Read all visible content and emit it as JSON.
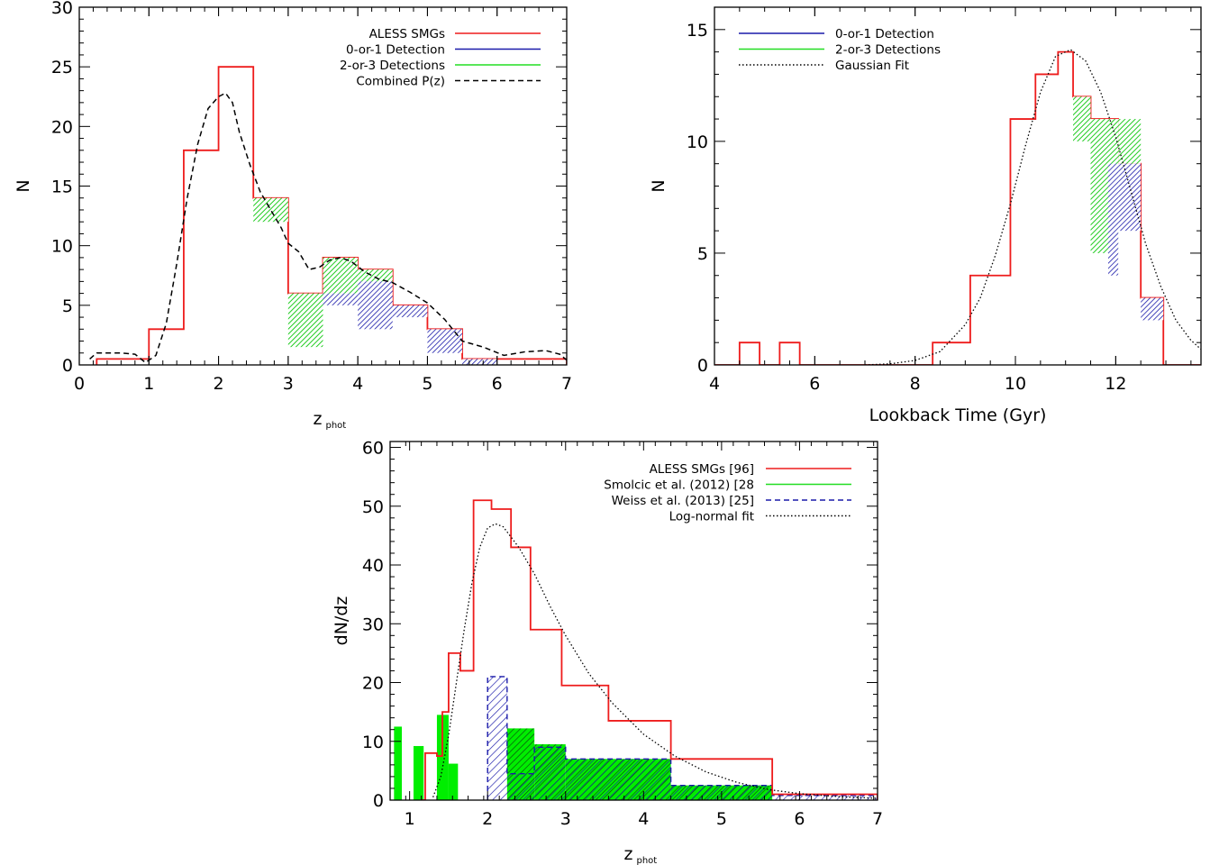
{
  "chart_data": [
    {
      "id": "p1",
      "type": "histogram",
      "xlabel": "z",
      "xlabel_sub": "phot",
      "ylabel": "N",
      "xlim": [
        0,
        7
      ],
      "ylim": [
        0,
        30
      ],
      "xticks": [
        0,
        1,
        2,
        3,
        4,
        5,
        6,
        7
      ],
      "yticks": [
        0,
        5,
        10,
        15,
        20,
        25,
        30
      ],
      "xminor": 0.2,
      "yminor": 1,
      "legend": [
        {
          "label": "ALESS SMGs",
          "color": "#ee1c1c",
          "dash": ""
        },
        {
          "label": "0-or-1 Detection",
          "color": "#1a1aaa",
          "dash": ""
        },
        {
          "label": "2-or-3 Detections",
          "color": "#22dd22",
          "dash": ""
        },
        {
          "label": "Combined P(z)",
          "color": "#000000",
          "dash": "6,4"
        }
      ],
      "series": [
        {
          "name": "ALESS SMGs",
          "kind": "step",
          "color": "#ee1c1c",
          "edges": [
            0.25,
            1.0,
            1.5,
            2.0,
            2.5,
            3.0,
            3.5,
            4.0,
            4.5,
            5.0,
            5.5,
            6.0,
            7.0
          ],
          "values": [
            0.5,
            3,
            18,
            25,
            14,
            6,
            9,
            8,
            5,
            3,
            0.5,
            0.5
          ]
        },
        {
          "name": "2-or-3 Detections",
          "kind": "band",
          "color": "#22cc22",
          "bins": [
            [
              2.5,
              3.0,
              12,
              14
            ],
            [
              3.0,
              3.5,
              1.5,
              6
            ],
            [
              3.5,
              4.0,
              6,
              9
            ],
            [
              4.0,
              4.5,
              7,
              8
            ]
          ]
        },
        {
          "name": "0-or-1 Detection",
          "kind": "band",
          "color": "#1a1aaa",
          "bins": [
            [
              3.5,
              4.0,
              5,
              6
            ],
            [
              4.0,
              4.5,
              3,
              7
            ],
            [
              4.5,
              5.0,
              4,
              5
            ],
            [
              5.0,
              5.5,
              1,
              3
            ],
            [
              5.5,
              6.0,
              0,
              0.5
            ]
          ]
        },
        {
          "name": "Combined P(z)",
          "kind": "line",
          "color": "#000000",
          "dash": "6,4",
          "x": [
            0.15,
            0.25,
            0.4,
            0.6,
            0.8,
            0.95,
            1.1,
            1.25,
            1.4,
            1.55,
            1.7,
            1.85,
            2.0,
            2.1,
            2.2,
            2.3,
            2.45,
            2.6,
            2.75,
            2.9,
            3.0,
            3.15,
            3.3,
            3.45,
            3.6,
            3.75,
            3.9,
            4.1,
            4.3,
            4.5,
            4.75,
            5.0,
            5.25,
            5.5,
            5.8,
            6.1,
            6.4,
            6.7,
            6.9,
            7.0
          ],
          "y": [
            0.5,
            1.0,
            1.0,
            1.0,
            0.9,
            0.2,
            0.8,
            3.5,
            8.5,
            14.0,
            18.5,
            21.5,
            22.5,
            22.8,
            22.0,
            19.5,
            16.8,
            14.5,
            13.0,
            11.5,
            10.2,
            9.5,
            8.0,
            8.2,
            8.8,
            9.0,
            8.7,
            7.8,
            7.2,
            6.9,
            6.1,
            5.2,
            3.8,
            2.0,
            1.5,
            0.8,
            1.1,
            1.2,
            0.9,
            0.4
          ]
        }
      ]
    },
    {
      "id": "p2",
      "type": "histogram",
      "xlabel": "Lookback Time (Gyr)",
      "ylabel": "N",
      "xlim": [
        4,
        13.7
      ],
      "ylim": [
        0,
        16
      ],
      "xticks": [
        4,
        6,
        8,
        10,
        12
      ],
      "yticks": [
        0,
        5,
        10,
        15
      ],
      "xminor": 0.5,
      "yminor": 1,
      "legend": [
        {
          "label": "0-or-1 Detection",
          "color": "#1a1aaa",
          "dash": ""
        },
        {
          "label": "2-or-3 Detections",
          "color": "#22dd22",
          "dash": ""
        },
        {
          "label": "Gaussian Fit",
          "color": "#000000",
          "dash": "1.5,2.5"
        }
      ],
      "series": [
        {
          "name": "ALESS SMGs",
          "kind": "step",
          "color": "#ee1c1c",
          "edges": [
            4.0,
            4.5,
            4.9,
            5.3,
            5.7,
            8.35,
            9.1,
            9.9,
            10.4,
            10.85,
            11.15,
            11.5,
            12.05,
            12.5,
            12.95,
            13.7
          ],
          "values": [
            0,
            1,
            0,
            1,
            0,
            1,
            4,
            11,
            13,
            14,
            12,
            11,
            9,
            3,
            0
          ]
        },
        {
          "name": "2-or-3 Detections",
          "kind": "band",
          "color": "#22cc22",
          "bins": [
            [
              11.15,
              11.5,
              10,
              12
            ],
            [
              11.5,
              12.05,
              5,
              11
            ],
            [
              12.05,
              12.5,
              9,
              11
            ]
          ]
        },
        {
          "name": "0-or-1 Detection",
          "kind": "band",
          "color": "#1a1aaa",
          "bins": [
            [
              11.85,
              12.05,
              4,
              9
            ],
            [
              12.05,
              12.5,
              6,
              9
            ],
            [
              12.5,
              12.95,
              2,
              3
            ]
          ]
        },
        {
          "name": "Gaussian Fit",
          "kind": "line",
          "color": "#000000",
          "dash": "1.5,2.5",
          "x": [
            7.0,
            7.5,
            8.0,
            8.5,
            9.0,
            9.3,
            9.6,
            9.9,
            10.2,
            10.5,
            10.8,
            11.1,
            11.4,
            11.7,
            12.0,
            12.3,
            12.6,
            12.9,
            13.2,
            13.5,
            13.7
          ],
          "y": [
            0.0,
            0.05,
            0.2,
            0.6,
            1.8,
            3.0,
            4.9,
            7.2,
            9.8,
            12.2,
            13.8,
            14.1,
            13.6,
            12.2,
            10.2,
            7.8,
            5.4,
            3.5,
            2.0,
            1.1,
            0.7
          ]
        }
      ]
    },
    {
      "id": "p3",
      "type": "histogram",
      "xlabel": "z",
      "xlabel_sub": "phot",
      "ylabel": "dN/dz",
      "xlim": [
        0.75,
        7
      ],
      "ylim": [
        0,
        61
      ],
      "xticks": [
        1,
        2,
        3,
        4,
        5,
        6,
        7
      ],
      "yticks": [
        0,
        10,
        20,
        30,
        40,
        50,
        60
      ],
      "xminor": 0.2,
      "yminor": 2,
      "legend": [
        {
          "label": "ALESS SMGs [96]",
          "color": "#ee1c1c",
          "dash": ""
        },
        {
          "label": "Smolcic et al. (2012) [28",
          "color": "#22dd22",
          "dash": ""
        },
        {
          "label": "Weiss et al. (2013) [25]",
          "color": "#1a1aaa",
          "dash": "6,4"
        },
        {
          "label": "Log-normal fit",
          "color": "#000000",
          "dash": "1.5,2.5"
        }
      ],
      "series": [
        {
          "name": "Smolcic et al. (2012)",
          "kind": "fill",
          "color": "#00ee00",
          "bins": [
            [
              0.8,
              0.9,
              12.5
            ],
            [
              1.05,
              1.18,
              9.2
            ],
            [
              1.35,
              1.5,
              14.5
            ],
            [
              1.5,
              1.62,
              6.2
            ],
            [
              2.25,
              2.6,
              12.2
            ],
            [
              2.6,
              3.0,
              9.5
            ],
            [
              3.0,
              4.35,
              7.0
            ],
            [
              4.35,
              5.65,
              2.5
            ]
          ]
        },
        {
          "name": "Weiss et al. (2013)",
          "kind": "hatchstep",
          "color": "#1a1aaa",
          "bins": [
            [
              2.0,
              2.25,
              21
            ],
            [
              2.25,
              2.6,
              4.5
            ],
            [
              2.6,
              3.0,
              9.0
            ],
            [
              3.0,
              4.35,
              7.0
            ],
            [
              4.35,
              5.65,
              2.5
            ],
            [
              5.65,
              7.0,
              0.8
            ]
          ]
        },
        {
          "name": "ALESS SMGs",
          "kind": "step",
          "color": "#ee1c1c",
          "edges": [
            1.15,
            1.2,
            1.35,
            1.42,
            1.5,
            1.65,
            1.82,
            2.05,
            2.3,
            2.55,
            2.95,
            3.55,
            4.35,
            5.65,
            7.0
          ],
          "values": [
            0,
            8,
            7.5,
            15,
            25,
            22,
            51,
            49.5,
            43,
            29,
            19.5,
            13.5,
            7,
            1
          ]
        },
        {
          "name": "Log-normal fit",
          "kind": "line",
          "color": "#000000",
          "dash": "1.5,2.5",
          "x": [
            1.3,
            1.4,
            1.5,
            1.6,
            1.7,
            1.8,
            1.9,
            2.0,
            2.1,
            2.2,
            2.4,
            2.6,
            2.8,
            3.0,
            3.3,
            3.6,
            4.0,
            4.4,
            4.8,
            5.2,
            5.6,
            6.0,
            6.5,
            7.0
          ],
          "y": [
            0.5,
            4.0,
            11.0,
            20.0,
            29.0,
            37.0,
            43.0,
            46.3,
            47.0,
            46.5,
            43.0,
            38.5,
            33.0,
            28.0,
            21.5,
            16.5,
            11.2,
            7.5,
            4.8,
            3.0,
            1.8,
            1.1,
            0.6,
            0.3
          ]
        }
      ]
    }
  ]
}
